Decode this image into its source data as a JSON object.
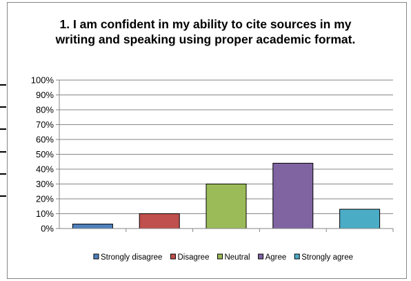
{
  "chart_data": {
    "type": "bar",
    "title_lines": [
      "1. I am confident in my ability to cite sources in my",
      "writing and speaking using proper academic format."
    ],
    "categories": [
      "Strongly disagree",
      "Disagree",
      "Neutral",
      "Agree",
      "Strongly agree"
    ],
    "values": [
      3,
      10,
      30,
      44,
      13
    ],
    "colors": [
      "#4F81BD",
      "#C0504D",
      "#9BBB59",
      "#8064A2",
      "#4BACC6"
    ],
    "ylim": [
      0,
      100
    ],
    "y_tick_step": 10,
    "y_tick_format": "percent",
    "y_tick_labels": [
      "0%",
      "10%",
      "20%",
      "30%",
      "40%",
      "50%",
      "60%",
      "70%",
      "80%",
      "90%",
      "100%"
    ],
    "gridlines": true,
    "legend_position": "bottom"
  }
}
